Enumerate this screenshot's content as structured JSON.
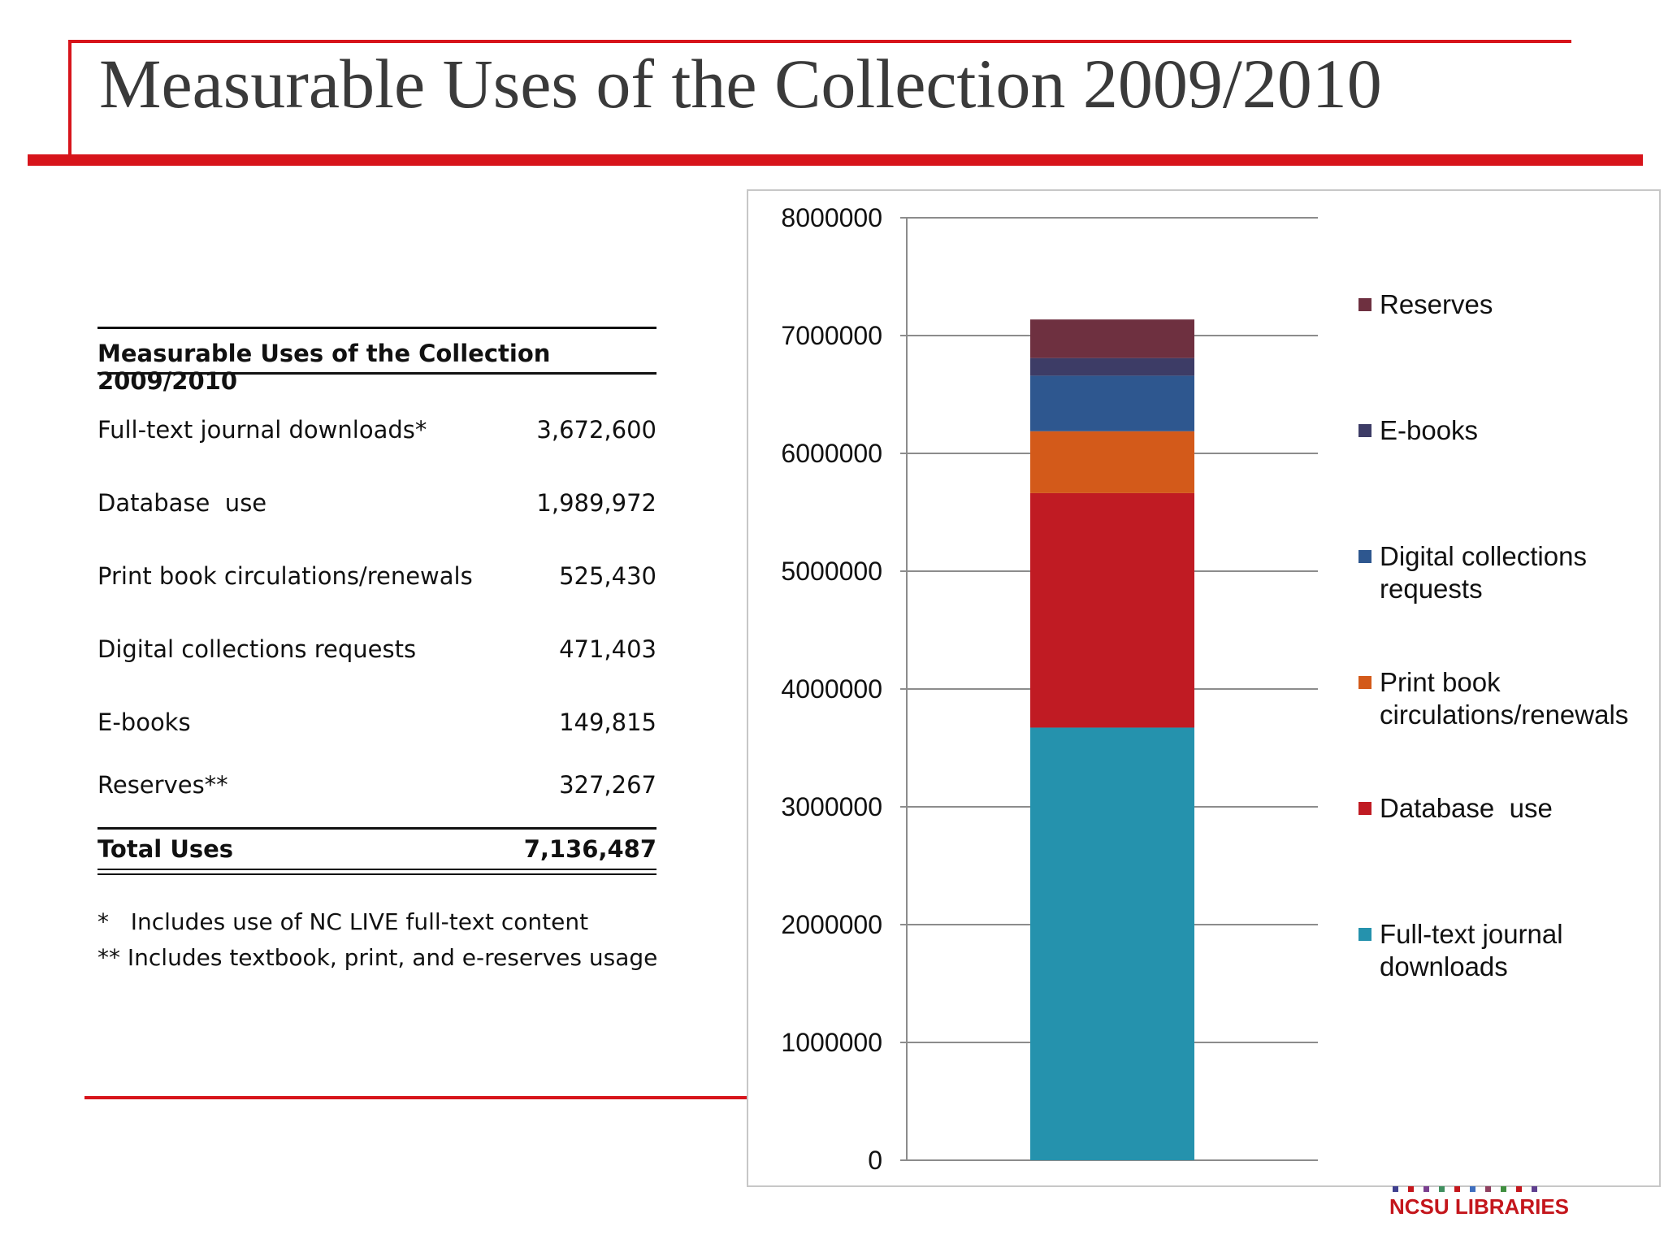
{
  "slide": {
    "title": "Measurable Uses of the Collection 2009/2010"
  },
  "table": {
    "heading": "Measurable Uses of the Collection 2009/2010",
    "rows": [
      {
        "label": "Full-text journal downloads*",
        "value": "3,672,600"
      },
      {
        "label": "Database  use",
        "value": "1,989,972"
      },
      {
        "label": "Print book circulations/renewals",
        "value": "525,430"
      },
      {
        "label": "Digital collections requests",
        "value": "471,403"
      },
      {
        "label": "E-books",
        "value": "149,815"
      },
      {
        "label": "Reserves**",
        "value": "327,267"
      }
    ],
    "total_label": "Total Uses",
    "total_value": "7,136,487",
    "notes": [
      "*   Includes use of NC LIVE full-text content",
      "** Includes textbook, print, and e-reserves usage"
    ]
  },
  "chart_data": {
    "type": "bar",
    "stacked": true,
    "categories": [
      ""
    ],
    "series": [
      {
        "name": "Full-text journal downloads",
        "values": [
          3672600
        ],
        "color": "#2592ad"
      },
      {
        "name": "Database  use",
        "values": [
          1989972
        ],
        "color": "#c01b23"
      },
      {
        "name": "Print book circulations/renewals",
        "values": [
          525430
        ],
        "color": "#d35a1a"
      },
      {
        "name": "Digital collections requests",
        "values": [
          471403
        ],
        "color": "#2e578f"
      },
      {
        "name": "E-books",
        "values": [
          149815
        ],
        "color": "#3d3c66"
      },
      {
        "name": "Reserves",
        "values": [
          327267
        ],
        "color": "#6e3040"
      }
    ],
    "y_ticks": [
      "0",
      "1000000",
      "2000000",
      "3000000",
      "4000000",
      "5000000",
      "6000000",
      "7000000",
      "8000000"
    ],
    "ylim": [
      0,
      8000000
    ],
    "grid": true,
    "legend_position": "right",
    "title": "",
    "xlabel": "",
    "ylabel": ""
  },
  "logo": {
    "text": "NCSU LIBRARIES",
    "dot_colors": [
      "#3f3f8f",
      "#c4161c",
      "#7a3f8f",
      "#3f8f5f",
      "#c4161c",
      "#3f6fbf",
      "#8f3f5f",
      "#3f8f3f",
      "#c4161c",
      "#5f3f8f"
    ]
  }
}
